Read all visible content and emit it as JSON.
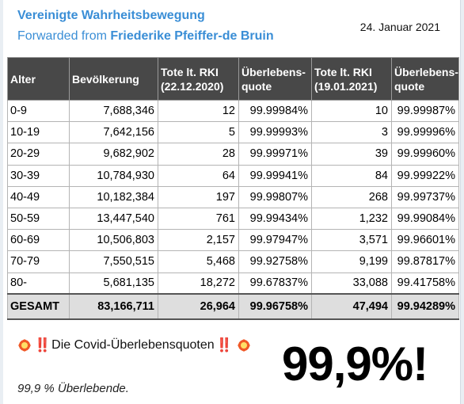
{
  "post": {
    "channel_name": "Vereinigte Wahrheitsbewegung",
    "forwarded_label": "Forwarded from ",
    "forwarded_source": "Friederike Pfeiffer-de Bruin",
    "date": "24. Januar 2021"
  },
  "table": {
    "headers": {
      "age": "Alter",
      "population": "Bevölkerung",
      "deaths1_line1": "Tote lt. RKI",
      "deaths1_line2": "(22.12.2020)",
      "rate1_line1": "Überlebens-",
      "rate1_line2": "quote",
      "deaths2_line1": "Tote lt. RKI",
      "deaths2_line2": "(19.01.2021)",
      "rate2_line1": "Überlebens-",
      "rate2_line2": "quote"
    },
    "rows": [
      {
        "age": "0-9",
        "population": "7,688,346",
        "deaths1": "12",
        "rate1": "99.99984%",
        "deaths2": "10",
        "rate2": "99.99987%"
      },
      {
        "age": "10-19",
        "population": "7,642,156",
        "deaths1": "5",
        "rate1": "99.99993%",
        "deaths2": "3",
        "rate2": "99.99996%"
      },
      {
        "age": "20-29",
        "population": "9,682,902",
        "deaths1": "28",
        "rate1": "99.99971%",
        "deaths2": "39",
        "rate2": "99.99960%"
      },
      {
        "age": "30-39",
        "population": "10,784,930",
        "deaths1": "64",
        "rate1": "99.99941%",
        "deaths2": "84",
        "rate2": "99.99922%"
      },
      {
        "age": "40-49",
        "population": "10,182,384",
        "deaths1": "197",
        "rate1": "99.99807%",
        "deaths2": "268",
        "rate2": "99.99737%"
      },
      {
        "age": "50-59",
        "population": "13,447,540",
        "deaths1": "761",
        "rate1": "99.99434%",
        "deaths2": "1,232",
        "rate2": "99.99084%"
      },
      {
        "age": "60-69",
        "population": "10,506,803",
        "deaths1": "2,157",
        "rate1": "99.97947%",
        "deaths2": "3,571",
        "rate2": "99.96601%"
      },
      {
        "age": "70-79",
        "population": "7,550,515",
        "deaths1": "5,468",
        "rate1": "99.92758%",
        "deaths2": "9,199",
        "rate2": "99.87817%"
      },
      {
        "age": "80-",
        "population": "5,681,135",
        "deaths1": "18,272",
        "rate1": "99.67837%",
        "deaths2": "33,088",
        "rate2": "99.41758%"
      }
    ],
    "total": {
      "age": "GESAMT",
      "population": "83,166,711",
      "deaths1": "26,964",
      "rate1": "99.96758%",
      "deaths2": "47,494",
      "rate2": "99.94289%"
    }
  },
  "bottom": {
    "headline_icon_left": "collision-icon",
    "headline_bang": "‼️",
    "headline_text": "Die Covid-Überlebensquoten",
    "headline_icon_right": "collision-icon",
    "big_number": "99,9%!",
    "caption": "99,9 % Überlebende."
  },
  "colors": {
    "link": "#3a8ed6",
    "table_header_bg": "#484848",
    "total_row_bg": "#dedede",
    "bang": "#e0312b"
  }
}
